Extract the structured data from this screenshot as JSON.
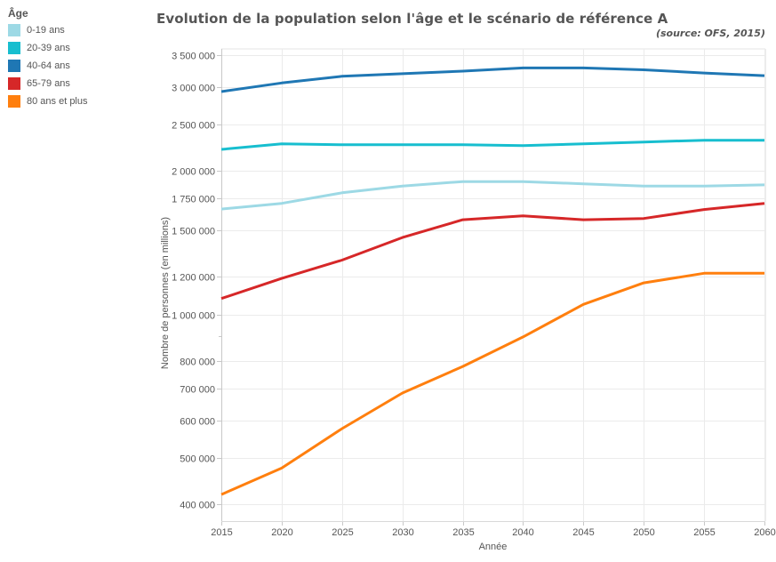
{
  "legend": {
    "title": "Âge",
    "items": [
      {
        "label": "0-19 ans",
        "color": "#9dd9e5"
      },
      {
        "label": "20-39 ans",
        "color": "#17becf"
      },
      {
        "label": "40-64 ans",
        "color": "#1f77b4"
      },
      {
        "label": "65-79 ans",
        "color": "#d62728"
      },
      {
        "label": "80 ans et plus",
        "color": "#ff7f0e"
      }
    ]
  },
  "header": {
    "title": "Evolution de la population selon l'âge et le scénario de référence A",
    "source": "(source: OFS, 2015)"
  },
  "chart_data": {
    "type": "line",
    "title": "Evolution de la population selon l'âge et le scénario de référence A",
    "subtitle": "(source: OFS, 2015)",
    "xlabel": "Année",
    "ylabel": "Nombre de personnes (en millions)",
    "yscale": "log",
    "ylim": [
      370000,
      3700000
    ],
    "xlim": [
      2015,
      2060
    ],
    "grid": true,
    "legend_position": "left",
    "x": [
      2015,
      2020,
      2025,
      2030,
      2035,
      2040,
      2045,
      2050,
      2055,
      2060
    ],
    "x_tick_labels": [
      "2015",
      "2020",
      "2025",
      "2030",
      "2035",
      "2040",
      "2045",
      "2050",
      "2055",
      "2060"
    ],
    "y_ticks": [
      {
        "value": 3500000,
        "label": "3 500 000"
      },
      {
        "value": 3000000,
        "label": "3 000 000"
      },
      {
        "value": 2500000,
        "label": "2 500 000"
      },
      {
        "value": 2000000,
        "label": "2 000 000"
      },
      {
        "value": 1750000,
        "label": "1 750 000"
      },
      {
        "value": 1500000,
        "label": "1 500 000"
      },
      {
        "value": 1200000,
        "label": "1 200 000"
      },
      {
        "value": 1000000,
        "label": "1 000 000"
      },
      {
        "value": 900000,
        "label": ""
      },
      {
        "value": 800000,
        "label": "800 000"
      },
      {
        "value": 700000,
        "label": "700 000"
      },
      {
        "value": 600000,
        "label": "600 000"
      },
      {
        "value": 500000,
        "label": "500 000"
      },
      {
        "value": 400000,
        "label": "400 000"
      }
    ],
    "series": [
      {
        "name": "0-19 ans",
        "color": "#9dd9e5",
        "values": [
          1664000,
          1710000,
          1800000,
          1860000,
          1900000,
          1900000,
          1880000,
          1860000,
          1860000,
          1870000
        ]
      },
      {
        "name": "20-39 ans",
        "color": "#17becf",
        "values": [
          2220000,
          2280000,
          2270000,
          2270000,
          2270000,
          2260000,
          2280000,
          2300000,
          2320000,
          2320000
        ]
      },
      {
        "name": "40-64 ans",
        "color": "#1f77b4",
        "values": [
          2935000,
          3060000,
          3160000,
          3200000,
          3240000,
          3290000,
          3290000,
          3260000,
          3210000,
          3170000
        ]
      },
      {
        "name": "65-79 ans",
        "color": "#d62728",
        "values": [
          1080000,
          1190000,
          1300000,
          1450000,
          1580000,
          1610000,
          1580000,
          1590000,
          1660000,
          1710000
        ]
      },
      {
        "name": "80 ans et plus",
        "color": "#ff7f0e",
        "values": [
          419000,
          476000,
          576000,
          684000,
          778000,
          897000,
          1050000,
          1165000,
          1220000,
          1220000
        ]
      }
    ]
  }
}
